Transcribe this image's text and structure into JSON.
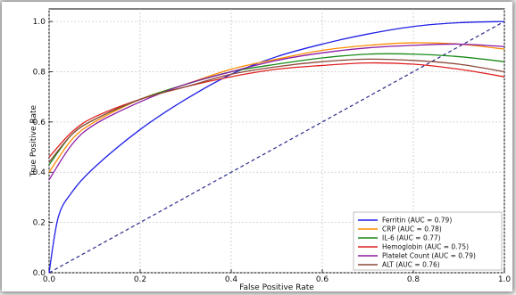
{
  "chart_data": {
    "type": "line",
    "xlabel": "False Positive Rate",
    "ylabel": "True Positive Rate",
    "xlim": [
      0.0,
      1.0
    ],
    "ylim": [
      0.0,
      1.05
    ],
    "xticks": [
      "0.0",
      "0.2",
      "0.4",
      "0.6",
      "0.8",
      "1.0"
    ],
    "yticks": [
      "0.0",
      "0.2",
      "0.4",
      "0.6",
      "0.8",
      "1.0"
    ],
    "grid": true,
    "legend_position": "bottom-right",
    "diagonal": {
      "x": [
        0,
        1
      ],
      "y": [
        0,
        1
      ],
      "color": "#2a2a8a",
      "style": "dashed"
    },
    "series": [
      {
        "name": "Ferritin (AUC = 0.79)",
        "color": "#1f1fe6",
        "x": [
          0,
          0.02,
          0.05,
          0.1,
          0.2,
          0.3,
          0.4,
          0.5,
          0.6,
          0.7,
          0.8,
          0.9,
          1.0
        ],
        "y": [
          0,
          0.22,
          0.32,
          0.42,
          0.57,
          0.69,
          0.79,
          0.86,
          0.91,
          0.95,
          0.98,
          0.995,
          1.0
        ]
      },
      {
        "name": "CRP (AUC = 0.78)",
        "color": "#ff8c00",
        "x": [
          0,
          0.05,
          0.1,
          0.2,
          0.3,
          0.4,
          0.5,
          0.6,
          0.7,
          0.8,
          0.9,
          1.0
        ],
        "y": [
          0.4,
          0.53,
          0.6,
          0.69,
          0.75,
          0.81,
          0.85,
          0.885,
          0.905,
          0.915,
          0.91,
          0.89
        ]
      },
      {
        "name": "IL-6 (AUC = 0.77)",
        "color": "#1a8a1a",
        "x": [
          0,
          0.05,
          0.1,
          0.2,
          0.3,
          0.4,
          0.5,
          0.6,
          0.7,
          0.8,
          0.9,
          1.0
        ],
        "y": [
          0.43,
          0.55,
          0.61,
          0.69,
          0.75,
          0.8,
          0.83,
          0.855,
          0.87,
          0.87,
          0.86,
          0.84
        ]
      },
      {
        "name": "Hemoglobin (AUC = 0.75)",
        "color": "#e02020",
        "x": [
          0,
          0.05,
          0.1,
          0.2,
          0.3,
          0.4,
          0.5,
          0.6,
          0.7,
          0.8,
          0.9,
          1.0
        ],
        "y": [
          0.46,
          0.56,
          0.62,
          0.69,
          0.74,
          0.78,
          0.81,
          0.825,
          0.835,
          0.83,
          0.81,
          0.78
        ]
      },
      {
        "name": "Platelet Count (AUC = 0.79)",
        "color": "#8a1aa6",
        "x": [
          0,
          0.05,
          0.1,
          0.2,
          0.3,
          0.4,
          0.5,
          0.6,
          0.7,
          0.8,
          0.9,
          1.0
        ],
        "y": [
          0.37,
          0.51,
          0.59,
          0.68,
          0.75,
          0.8,
          0.845,
          0.875,
          0.895,
          0.905,
          0.91,
          0.9
        ]
      },
      {
        "name": "ALT (AUC = 0.76)",
        "color": "#8b4a3a",
        "x": [
          0,
          0.05,
          0.1,
          0.2,
          0.3,
          0.4,
          0.5,
          0.6,
          0.7,
          0.8,
          0.9,
          1.0
        ],
        "y": [
          0.44,
          0.55,
          0.61,
          0.69,
          0.74,
          0.79,
          0.82,
          0.84,
          0.85,
          0.845,
          0.83,
          0.8
        ]
      }
    ]
  }
}
